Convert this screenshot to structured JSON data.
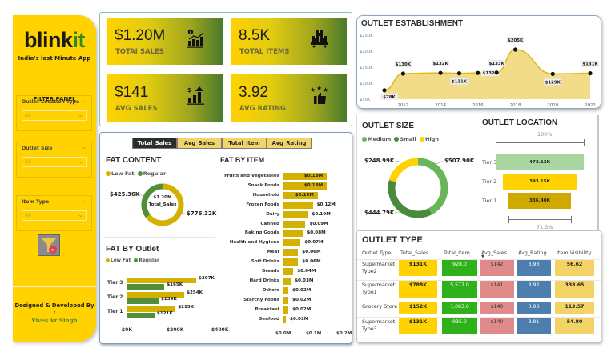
{
  "sidebar": {
    "logo_main": "blink",
    "logo_accent": "it",
    "tagline": "India's last Minute App",
    "filter_title": "FILTER PANEL",
    "filters": [
      {
        "label": "Outlet Location Type",
        "value": "All"
      },
      {
        "label": "Outlet Size",
        "value": "All"
      },
      {
        "label": "Item Type",
        "value": "All"
      }
    ],
    "clear_filter_icon": "funnel-clear-icon",
    "designed_by": "Designed & Developed By",
    "designed_sep": ":",
    "author": "Vivek kr Singh"
  },
  "kpis": [
    {
      "value": "$1.20M",
      "label": "TOTAI SALES",
      "icon": "sales-growth-icon"
    },
    {
      "value": "8.5K",
      "label": "TOTAL ITEMS",
      "icon": "boxes-icon"
    },
    {
      "value": "$141",
      "label": "AVG SALES",
      "icon": "bar-chart-up-icon"
    },
    {
      "value": "3.92",
      "label": "AVG RATING",
      "icon": "thumbs-up-stars-icon"
    }
  ],
  "metric_tabs": [
    {
      "label": "Total_Sales",
      "active": true
    },
    {
      "label": "Avg_Sales",
      "active": false
    },
    {
      "label": "Total_Item",
      "active": false
    },
    {
      "label": "Avg_Rating",
      "active": false
    }
  ],
  "colors": {
    "brand_yellow": "#ffd200",
    "low_fat": "#d4b000",
    "regular": "#4f8f3a",
    "medium": "#6ab55a",
    "small": "#4b8a3c",
    "high": "#ffd200",
    "tier3": "#a8d5a0",
    "tier2": "#ffd200",
    "tier1": "#cfa800",
    "cell_sales": "#ffd200",
    "cell_item": "#2fb11a",
    "cell_avg_sales": "#e08a8a",
    "cell_rating": "#4d7fae",
    "cell_visibility": "#f3d266"
  },
  "chart_data": [
    {
      "id": "fat_content",
      "type": "pie",
      "title": "FAT CONTENT",
      "legend": [
        "Low Fat",
        "Regular"
      ],
      "legend_position": "top-left",
      "center_value": "$1.20M",
      "center_label": "Total_Sales",
      "slices": [
        {
          "name": "Low Fat",
          "value": 776.32,
          "label": "$776.32K"
        },
        {
          "name": "Regular",
          "value": 425.36,
          "label": "$425.36K"
        }
      ]
    },
    {
      "id": "fat_by_outlet",
      "type": "bar",
      "orientation": "horizontal",
      "title": "FAT BY Outlet",
      "legend": [
        "Low Fat",
        "Regular"
      ],
      "legend_position": "top-left",
      "categories": [
        "Tier 3",
        "Tier 2",
        "Tier 1"
      ],
      "series": [
        {
          "name": "Low Fat",
          "values": [
            307,
            254,
            215
          ],
          "labels": [
            "$307K",
            "$254K",
            "$215K"
          ]
        },
        {
          "name": "Regular",
          "values": [
            165,
            139,
            121
          ],
          "labels": [
            "$165K",
            "$139K",
            "$121K"
          ]
        }
      ],
      "xlim": [
        0,
        400
      ],
      "x_ticks": [
        "$0K",
        "$200K",
        "$400K"
      ]
    },
    {
      "id": "fat_by_item",
      "type": "bar",
      "orientation": "horizontal",
      "title": "FAT BY ITEM",
      "categories": [
        "Fruits and Vegetables",
        "Snack Foods",
        "Household",
        "Frozen Foods",
        "Dairy",
        "Canned",
        "Baking Goods",
        "Health and Hygiene",
        "Meat",
        "Soft Drinks",
        "Breads",
        "Hard Drinks",
        "Others",
        "Starchy Foods",
        "Breakfast",
        "Seafood"
      ],
      "values": [
        0.18,
        0.18,
        0.14,
        0.12,
        0.1,
        0.09,
        0.08,
        0.07,
        0.06,
        0.06,
        0.04,
        0.03,
        0.02,
        0.02,
        0.02,
        0.01
      ],
      "labels": [
        "$0.18M",
        "$0.18M",
        "$0.14M",
        "$0.12M",
        "$0.10M",
        "$0.09M",
        "$0.08M",
        "$0.07M",
        "$0.06M",
        "$0.06M",
        "$0.04M",
        "$0.03M",
        "$0.02M",
        "$0.02M",
        "$0.02M",
        "$0.01M"
      ],
      "xlim": [
        0,
        0.2
      ],
      "x_ticks": [
        "$0.0M",
        "$0.1M",
        "$0.2M"
      ]
    },
    {
      "id": "outlet_establishment",
      "type": "area",
      "title": "OUTLET ESTABLISHMENT",
      "x": [
        2011,
        2012,
        2014,
        2015,
        2016,
        2017,
        2018,
        2020,
        2022
      ],
      "values": [
        78,
        130,
        132,
        131,
        132,
        133,
        205,
        129,
        131
      ],
      "labels": [
        "$78K",
        "$130K",
        "$132K",
        "$131K",
        "$132K",
        "$133K",
        "$205K",
        "$129K",
        "$131K"
      ],
      "ylim": [
        50,
        250
      ],
      "y_ticks": [
        "$50K",
        "$100K",
        "$150K",
        "$200K",
        "$250K"
      ],
      "x_ticks": [
        "2012",
        "2014",
        "2016",
        "2018",
        "2020",
        "2022"
      ]
    },
    {
      "id": "outlet_size",
      "type": "pie",
      "title": "OUTLET SIZE",
      "legend": [
        "Medium",
        "Small",
        "High"
      ],
      "legend_position": "top-left",
      "slices": [
        {
          "name": "Medium",
          "value": 507.9,
          "label": "$507.90K"
        },
        {
          "name": "Small",
          "value": 444.79,
          "label": "$444.79K"
        },
        {
          "name": "High",
          "value": 248.99,
          "label": "$248.99K"
        }
      ]
    },
    {
      "id": "outlet_location",
      "type": "bar",
      "subtype": "funnel",
      "title": "OUTLET LOCATION",
      "categories": [
        "Tier 3",
        "Tier 2",
        "Tier 1"
      ],
      "values": [
        472.13,
        393.15,
        336.4
      ],
      "labels": [
        "472.13K",
        "393.15K",
        "336.40K"
      ],
      "top_percent": "100%",
      "bottom_percent": "71.3%"
    }
  ],
  "outlet_type": {
    "title": "OUTLET TYPE",
    "columns": [
      "Outlet Type",
      "Total_Sales",
      "Total_Item",
      "Avg_Sales",
      "Avg_Rating",
      "Item Visibility"
    ],
    "sorted_column": "Avg_Sales",
    "rows": [
      {
        "name": "Supermarket Type2",
        "total_sales": "$131K",
        "total_item": "928.0",
        "avg_sales": "$142",
        "avg_rating": "3.93",
        "visibility": "56.62"
      },
      {
        "name": "Supermarket Type1",
        "total_sales": "$788K",
        "total_item": "5,577.0",
        "avg_sales": "$141",
        "avg_rating": "3.92",
        "visibility": "338.65"
      },
      {
        "name": "Grocery Store",
        "total_sales": "$152K",
        "total_item": "1,083.0",
        "avg_sales": "$140",
        "avg_rating": "3.93",
        "visibility": "113.57"
      },
      {
        "name": "Supermarket Type3",
        "total_sales": "$131K",
        "total_item": "935.0",
        "avg_sales": "$140",
        "avg_rating": "3.91",
        "visibility": "54.80"
      }
    ]
  }
}
